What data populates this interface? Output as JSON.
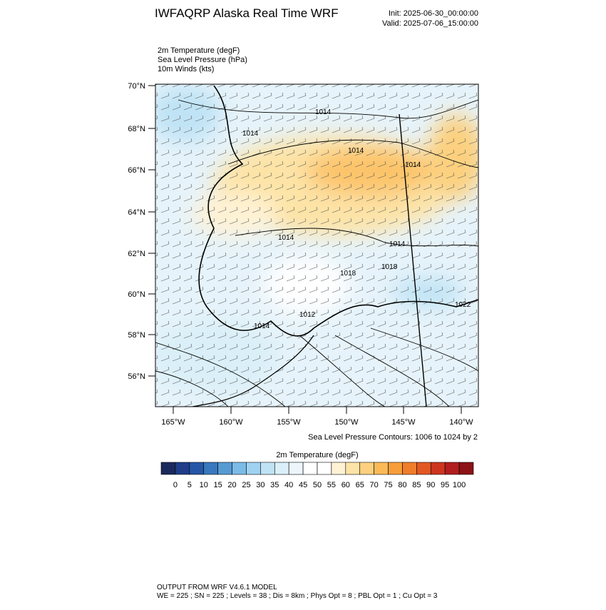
{
  "header": {
    "title": "IWFAQRP Alaska Real Time WRF",
    "init": "Init: 2025-06-30_00:00:00",
    "valid": "Valid: 2025-07-06_15:00:00"
  },
  "fields": [
    "2m Temperature   (degF)",
    "Sea Level Pressure   (hPa)",
    "10m Winds   (kts)"
  ],
  "map": {
    "lat_labels": [
      "70°N",
      "68°N",
      "66°N",
      "64°N",
      "62°N",
      "60°N",
      "58°N",
      "56°N"
    ],
    "lon_labels": [
      "165°W",
      "160°W",
      "155°W",
      "150°W",
      "145°W",
      "140°W"
    ],
    "contour_labels": [
      "1014",
      "1014",
      "1014",
      "1014",
      "1014",
      "1014",
      "1018",
      "1018",
      "1022",
      "1012",
      "1014"
    ],
    "contour_note": "Sea Level Pressure Contours: 1006 to 1024 by 2"
  },
  "colorbar": {
    "title": "2m Temperature  (degF)",
    "labels": [
      0,
      5,
      10,
      15,
      20,
      25,
      30,
      35,
      40,
      45,
      50,
      55,
      60,
      65,
      70,
      75,
      80,
      85,
      90,
      95,
      100
    ],
    "colors": [
      "#1b2a5c",
      "#1f3d88",
      "#2657a6",
      "#3878be",
      "#579bd3",
      "#7cbbe7",
      "#9fd2f2",
      "#bfe3f5",
      "#daeff8",
      "#ecf6fb",
      "#ffffff",
      "#ffffff",
      "#fff2d4",
      "#fde3a6",
      "#fcd07e",
      "#fbba58",
      "#f79e3a",
      "#ef7e2a",
      "#e25823",
      "#cd3520",
      "#b21d1f",
      "#8c1216"
    ]
  },
  "footer": {
    "line1": "OUTPUT FROM WRF V4.6.1 MODEL",
    "line2": "WE = 225 ; SN = 225 ; Levels = 38 ; Dis = 8km ; Phys Opt = 8 ; PBL Opt = 1 ; Cu Opt = 3"
  }
}
